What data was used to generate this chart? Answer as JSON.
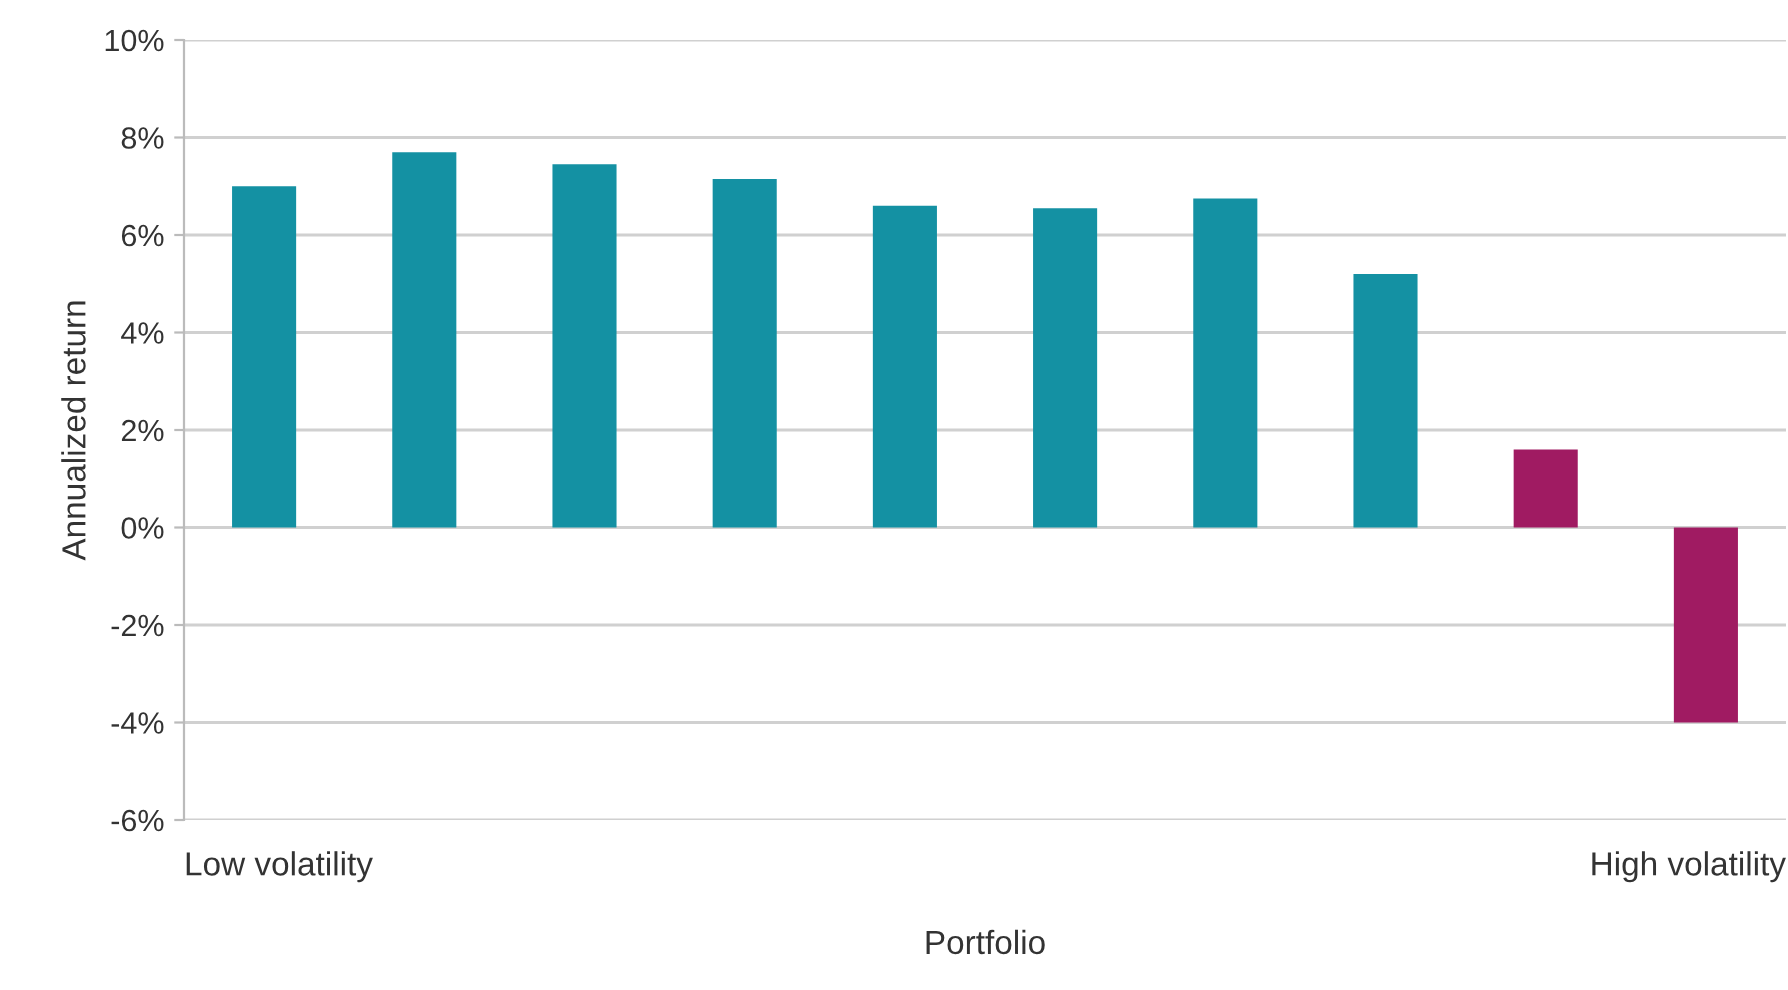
{
  "chart_data": {
    "type": "bar",
    "ylabel": "Annualized return",
    "xlabel": "Portfolio",
    "categories": [
      null,
      null,
      null,
      null,
      null,
      null,
      null,
      null,
      null,
      null
    ],
    "values": [
      7.0,
      7.7,
      7.45,
      7.15,
      6.6,
      6.55,
      6.75,
      5.2,
      1.6,
      -4.0
    ],
    "colors": [
      "#1491a3",
      "#1491a3",
      "#1491a3",
      "#1491a3",
      "#1491a3",
      "#1491a3",
      "#1491a3",
      "#1491a3",
      "#a01b62",
      "#a01b62"
    ],
    "ylim": [
      -6,
      10
    ],
    "yticks": [
      {
        "value": -6,
        "label": "-6%"
      },
      {
        "value": -4,
        "label": "-4%"
      },
      {
        "value": -2,
        "label": "-2%"
      },
      {
        "value": 0,
        "label": "0%"
      },
      {
        "value": 2,
        "label": "2%"
      },
      {
        "value": 4,
        "label": "4%"
      },
      {
        "value": 6,
        "label": "6%"
      },
      {
        "value": 8,
        "label": "8%"
      },
      {
        "value": 10,
        "label": "10%"
      }
    ],
    "grid": "y",
    "annotations": [
      "Low volatility",
      "High volatility"
    ]
  }
}
